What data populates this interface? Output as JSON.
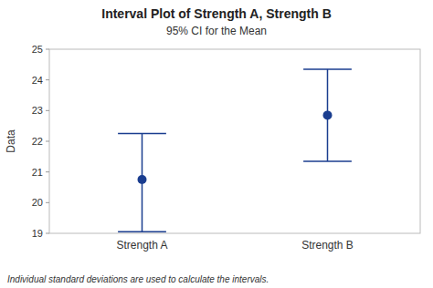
{
  "chart_data": {
    "type": "interval",
    "title": "Interval Plot of Strength A, Strength B",
    "subtitle": "95% CI for the Mean",
    "ylabel": "Data",
    "footnote": "Individual standard deviations are used to calculate the intervals.",
    "categories": [
      "Strength A",
      "Strength B"
    ],
    "values": [
      20.75,
      22.85
    ],
    "ci_lower": [
      19.05,
      21.35
    ],
    "ci_upper": [
      22.25,
      24.35
    ],
    "color": "#1a3d8f",
    "ylim": [
      19,
      25
    ],
    "yticks": [
      19,
      20,
      21,
      22,
      23,
      24,
      25
    ],
    "grid": false
  }
}
